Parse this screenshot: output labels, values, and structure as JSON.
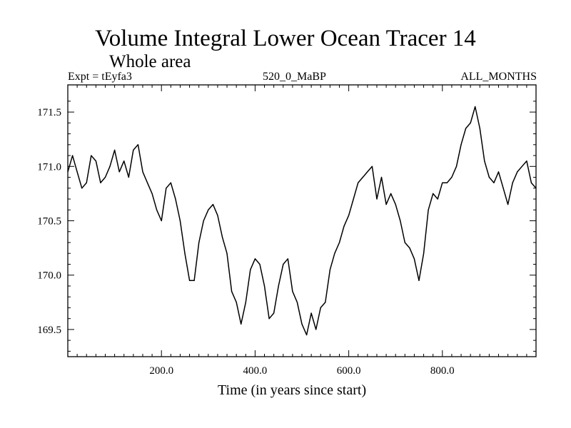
{
  "chart_data": {
    "type": "line",
    "title": "Volume Integral Lower Ocean Tracer 14",
    "subtitle": "Whole area",
    "expt_label": "Expt = tEyfa3",
    "center_label": "520_0_MaBP",
    "right_label": "ALL_MONTHS",
    "xlabel": "Time (in years since start)",
    "ylabel": "",
    "xlim": [
      0,
      1000
    ],
    "ylim": [
      169.25,
      171.75
    ],
    "x_ticks": [
      200,
      400,
      600,
      800
    ],
    "x_tick_labels": [
      "200.0",
      "400.0",
      "600.0",
      "800.0"
    ],
    "y_ticks": [
      169.5,
      170.0,
      170.5,
      171.0,
      171.5
    ],
    "y_tick_labels": [
      "169.5",
      "170.0",
      "170.5",
      "171.0",
      "171.5"
    ],
    "grid": false,
    "series": [
      {
        "name": "Volume Integral Lower Ocean Tracer 14",
        "x": [
          0,
          10,
          20,
          30,
          40,
          50,
          60,
          70,
          80,
          90,
          100,
          110,
          120,
          130,
          140,
          150,
          160,
          170,
          180,
          190,
          200,
          210,
          220,
          230,
          240,
          250,
          260,
          270,
          280,
          290,
          300,
          310,
          320,
          330,
          340,
          350,
          360,
          370,
          380,
          390,
          400,
          410,
          420,
          430,
          440,
          450,
          460,
          470,
          480,
          490,
          500,
          510,
          520,
          530,
          540,
          550,
          560,
          570,
          580,
          590,
          600,
          610,
          620,
          630,
          640,
          650,
          660,
          670,
          680,
          690,
          700,
          710,
          720,
          730,
          740,
          750,
          760,
          770,
          780,
          790,
          800,
          810,
          820,
          830,
          840,
          850,
          860,
          870,
          880,
          890,
          900,
          910,
          920,
          930,
          940,
          950,
          960,
          970,
          980,
          990,
          1000
        ],
        "values": [
          170.95,
          171.1,
          170.95,
          170.8,
          170.85,
          171.1,
          171.05,
          170.85,
          170.9,
          171.0,
          171.15,
          170.95,
          171.05,
          170.9,
          171.15,
          171.2,
          170.95,
          170.85,
          170.75,
          170.6,
          170.5,
          170.8,
          170.85,
          170.7,
          170.5,
          170.2,
          169.95,
          169.95,
          170.3,
          170.5,
          170.6,
          170.65,
          170.55,
          170.35,
          170.2,
          169.85,
          169.75,
          169.55,
          169.75,
          170.05,
          170.15,
          170.1,
          169.9,
          169.6,
          169.65,
          169.9,
          170.1,
          170.15,
          169.85,
          169.75,
          169.55,
          169.45,
          169.65,
          169.5,
          169.7,
          169.75,
          170.05,
          170.2,
          170.3,
          170.45,
          170.55,
          170.7,
          170.85,
          170.9,
          170.95,
          171.0,
          170.7,
          170.9,
          170.65,
          170.75,
          170.65,
          170.5,
          170.3,
          170.25,
          170.15,
          169.95,
          170.2,
          170.6,
          170.75,
          170.7,
          170.85,
          170.85,
          170.9,
          171.0,
          171.2,
          171.35,
          171.4,
          171.55,
          171.35,
          171.05,
          170.9,
          170.85,
          170.95,
          170.8,
          170.65,
          170.85,
          170.95,
          171.0,
          171.05,
          170.85,
          170.8
        ]
      }
    ]
  }
}
